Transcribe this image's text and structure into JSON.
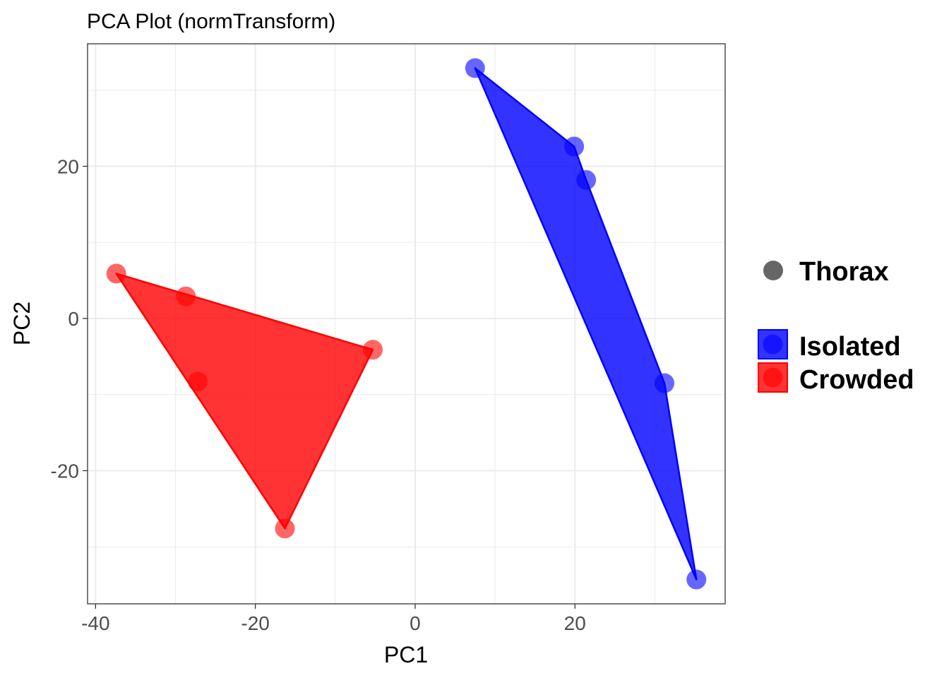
{
  "chart_data": {
    "type": "scatter",
    "title": "PCA Plot (normTransform)",
    "xlabel": "PC1",
    "ylabel": "PC2",
    "xlim": [
      -41,
      38.8
    ],
    "ylim": [
      -37.5,
      36.1
    ],
    "xticks": [
      -40,
      -20,
      0,
      20
    ],
    "yticks": [
      -20,
      0,
      20
    ],
    "xtick_labels": [
      "-40",
      "-20",
      "0",
      "20"
    ],
    "ytick_labels": [
      "-20",
      "0",
      "20"
    ],
    "grid": true,
    "legend_position": "right",
    "shape_legend": {
      "label": "Thorax",
      "color": "#666666"
    },
    "series": [
      {
        "name": "Isolated",
        "color": "#0000ff",
        "x": [
          7.5,
          19.9,
          21.4,
          31.2,
          35.2
        ],
        "y": [
          32.9,
          22.6,
          18.2,
          -8.5,
          -34.3
        ],
        "hull": [
          [
            7.5,
            32.9
          ],
          [
            19.9,
            22.6
          ],
          [
            21.4,
            18.2
          ],
          [
            31.2,
            -8.5
          ],
          [
            35.2,
            -34.3
          ]
        ]
      },
      {
        "name": "Crowded",
        "color": "#ff0000",
        "x": [
          -37.4,
          -28.7,
          -27.2,
          -5.3,
          -16.3
        ],
        "y": [
          5.9,
          2.9,
          -8.3,
          -4.1,
          -27.6
        ],
        "hull": [
          [
            -37.4,
            5.9
          ],
          [
            -5.3,
            -4.1
          ],
          [
            -16.3,
            -27.6
          ]
        ]
      }
    ]
  }
}
